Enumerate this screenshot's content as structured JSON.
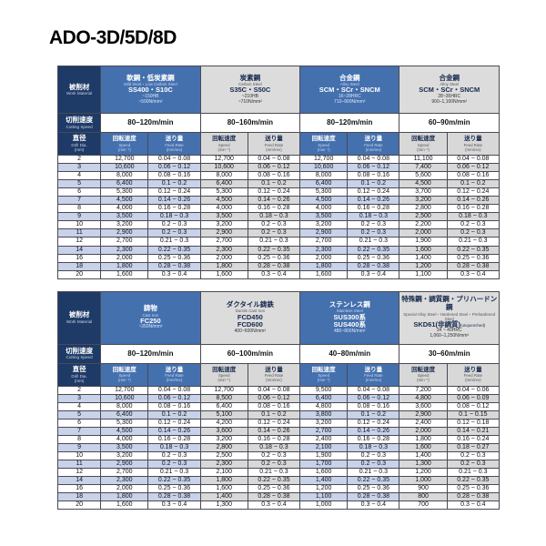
{
  "page": {
    "title": "ADO-3D/5D/8D"
  },
  "labels": {
    "work_material": "被削材",
    "work_material_sub": "Work Material",
    "cutting_speed": "切削速度",
    "cutting_speed_sub": "Cutting Speed",
    "dia": "直径",
    "dia_sub": "Drill Dia.",
    "dia_unit": "(mm)",
    "speed": "回転速度",
    "speed_sub": "Speed",
    "speed_unit": "(min⁻¹)",
    "feed": "送り量",
    "feed_sub": "Feed Rate",
    "feed_unit": "(mm/rev)"
  },
  "tables": [
    {
      "materials": [
        {
          "style": "blue",
          "name_jp": "軟鋼・低炭素鋼",
          "name_en": "Mild Steel・Low Carbon Steel",
          "grade": "SS400・S10C",
          "hardness": "~150HB",
          "strength": "~500N/mm²",
          "cutting_speed": "80–120m/min"
        },
        {
          "style": "gray",
          "name_jp": "炭素鋼",
          "name_en": "Carbon Steel",
          "grade": "S35C・S50C",
          "hardness": "~210HB",
          "strength": "~710N/mm²",
          "cutting_speed": "80–160m/min"
        },
        {
          "style": "blue",
          "name_jp": "合金鋼",
          "name_en": "Alloy Steel",
          "grade": "SCM・SCr・SNCM",
          "hardness": "16~28HRC",
          "strength": "710–900N/mm²",
          "cutting_speed": "80–120m/min"
        },
        {
          "style": "gray",
          "name_jp": "合金鋼",
          "name_en": "Alloy Steel",
          "grade": "SCM・SCr・SNCM",
          "hardness": "28~35HRC",
          "strength": "900–1,100N/mm²",
          "cutting_speed": "60–90m/min"
        }
      ],
      "rows": [
        {
          "dia": "2",
          "cells": [
            [
              "12,700",
              "0.04 ~ 0.08"
            ],
            [
              "12,700",
              "0.04 ~ 0.08"
            ],
            [
              "12,700",
              "0.04 ~ 0.08"
            ],
            [
              "11,100",
              "0.04 ~ 0.08"
            ]
          ]
        },
        {
          "dia": "3",
          "cells": [
            [
              "10,600",
              "0.06 ~ 0.12"
            ],
            [
              "10,600",
              "0.06 ~ 0.12"
            ],
            [
              "10,600",
              "0.06 ~ 0.12"
            ],
            [
              "7,400",
              "0.06 ~ 0.12"
            ]
          ]
        },
        {
          "dia": "4",
          "cells": [
            [
              "8,000",
              "0.08 ~ 0.16"
            ],
            [
              "8,000",
              "0.08 ~ 0.16"
            ],
            [
              "8,000",
              "0.08 ~ 0.16"
            ],
            [
              "5,600",
              "0.08 ~ 0.16"
            ]
          ]
        },
        {
          "dia": "5",
          "cells": [
            [
              "6,400",
              "0.1 ~ 0.2"
            ],
            [
              "6,400",
              "0.1 ~ 0.2"
            ],
            [
              "6,400",
              "0.1 ~ 0.2"
            ],
            [
              "4,500",
              "0.1 ~ 0.2"
            ]
          ]
        },
        {
          "dia": "6",
          "cells": [
            [
              "5,300",
              "0.12 ~ 0.24"
            ],
            [
              "5,300",
              "0.12 ~ 0.24"
            ],
            [
              "5,300",
              "0.12 ~ 0.24"
            ],
            [
              "3,700",
              "0.12 ~ 0.24"
            ]
          ]
        },
        {
          "dia": "7",
          "cells": [
            [
              "4,500",
              "0.14 ~ 0.26"
            ],
            [
              "4,500",
              "0.14 ~ 0.26"
            ],
            [
              "4,500",
              "0.14 ~ 0.26"
            ],
            [
              "3,200",
              "0.14 ~ 0.26"
            ]
          ]
        },
        {
          "dia": "8",
          "cells": [
            [
              "4,000",
              "0.16 ~ 0.28"
            ],
            [
              "4,000",
              "0.16 ~ 0.28"
            ],
            [
              "4,000",
              "0.16 ~ 0.28"
            ],
            [
              "2,800",
              "0.16 ~ 0.28"
            ]
          ]
        },
        {
          "dia": "9",
          "cells": [
            [
              "3,500",
              "0.18 ~ 0.3"
            ],
            [
              "3,500",
              "0.18 ~ 0.3"
            ],
            [
              "3,500",
              "0.18 ~ 0.3"
            ],
            [
              "2,500",
              "0.18 ~ 0.3"
            ]
          ]
        },
        {
          "dia": "10",
          "cells": [
            [
              "3,200",
              "0.2 ~ 0.3"
            ],
            [
              "3,200",
              "0.2 ~ 0.3"
            ],
            [
              "3,200",
              "0.2 ~ 0.3"
            ],
            [
              "2,200",
              "0.2 ~ 0.3"
            ]
          ]
        },
        {
          "dia": "11",
          "cells": [
            [
              "2,900",
              "0.2 ~ 0.3"
            ],
            [
              "2,900",
              "0.2 ~ 0.3"
            ],
            [
              "2,900",
              "0.2 ~ 0.3"
            ],
            [
              "2,000",
              "0.2 ~ 0.3"
            ]
          ]
        },
        {
          "dia": "12",
          "cells": [
            [
              "2,700",
              "0.21 ~ 0.3"
            ],
            [
              "2,700",
              "0.21 ~ 0.3"
            ],
            [
              "2,700",
              "0.21 ~ 0.3"
            ],
            [
              "1,900",
              "0.21 ~ 0.3"
            ]
          ]
        },
        {
          "dia": "14",
          "cells": [
            [
              "2,300",
              "0.22 ~ 0.35"
            ],
            [
              "2,300",
              "0.22 ~ 0.35"
            ],
            [
              "2,300",
              "0.22 ~ 0.35"
            ],
            [
              "1,600",
              "0.22 ~ 0.35"
            ]
          ]
        },
        {
          "dia": "16",
          "cells": [
            [
              "2,000",
              "0.25 ~ 0.36"
            ],
            [
              "2,000",
              "0.25 ~ 0.36"
            ],
            [
              "2,000",
              "0.25 ~ 0.36"
            ],
            [
              "1,400",
              "0.25 ~ 0.36"
            ]
          ]
        },
        {
          "dia": "18",
          "cells": [
            [
              "1,800",
              "0.28 ~ 0.38"
            ],
            [
              "1,800",
              "0.28 ~ 0.38"
            ],
            [
              "1,800",
              "0.28 ~ 0.38"
            ],
            [
              "1,200",
              "0.28 ~ 0.38"
            ]
          ]
        },
        {
          "dia": "20",
          "cells": [
            [
              "1,600",
              "0.3 ~ 0.4"
            ],
            [
              "1,600",
              "0.3 ~ 0.4"
            ],
            [
              "1,600",
              "0.3 ~ 0.4"
            ],
            [
              "1,100",
              "0.3 ~ 0.4"
            ]
          ]
        }
      ]
    },
    {
      "materials": [
        {
          "style": "blue",
          "name_jp": "鋳物",
          "name_en": "Cast Iron",
          "grade": "FC250",
          "strength": "~350N/mm²",
          "cutting_speed": "80–120m/min"
        },
        {
          "style": "gray",
          "name_jp": "ダクタイル鋳鉄",
          "name_en": "Ductile Cast Iron",
          "grade": "FCD450\nFCD600",
          "strength": "400~600N/mm²",
          "cutting_speed": "60–100m/min"
        },
        {
          "style": "blue",
          "name_jp": "ステンレス鋼",
          "name_en": "Stainless Steel",
          "grade": "SUS300系\nSUS400系",
          "strength": "480~800N/mm²",
          "cutting_speed": "40–80m/min"
        },
        {
          "style": "gray",
          "name_jp": "特殊鋼・調質鋼・プリハードン鋼",
          "name_en": "Special Alloy Steel・Hardened Steel・Prehardened Steel",
          "grade": "SKD61(非調質)",
          "grade_note": "(unquenched)",
          "hardness": "34 ~ 40HRC",
          "strength": "1,060–1,250N/mm²",
          "cutting_speed": "30–60m/min"
        }
      ],
      "rows": [
        {
          "dia": "2",
          "cells": [
            [
              "12,700",
              "0.04 ~ 0.08"
            ],
            [
              "12,700",
              "0.04 ~ 0.08"
            ],
            [
              "9,500",
              "0.04 ~ 0.08"
            ],
            [
              "7,200",
              "0.04 ~ 0.06"
            ]
          ]
        },
        {
          "dia": "3",
          "cells": [
            [
              "10,600",
              "0.06 ~ 0.12"
            ],
            [
              "8,500",
              "0.06 ~ 0.12"
            ],
            [
              "6,400",
              "0.06 ~ 0.12"
            ],
            [
              "4,800",
              "0.06 ~ 0.09"
            ]
          ]
        },
        {
          "dia": "4",
          "cells": [
            [
              "8,000",
              "0.08 ~ 0.16"
            ],
            [
              "6,400",
              "0.08 ~ 0.16"
            ],
            [
              "4,800",
              "0.08 ~ 0.16"
            ],
            [
              "3,600",
              "0.08 ~ 0.12"
            ]
          ]
        },
        {
          "dia": "5",
          "cells": [
            [
              "6,400",
              "0.1 ~ 0.2"
            ],
            [
              "5,100",
              "0.1 ~ 0.2"
            ],
            [
              "3,800",
              "0.1 ~ 0.2"
            ],
            [
              "2,900",
              "0.1 ~ 0.15"
            ]
          ]
        },
        {
          "dia": "6",
          "cells": [
            [
              "5,300",
              "0.12 ~ 0.24"
            ],
            [
              "4,200",
              "0.12 ~ 0.24"
            ],
            [
              "3,200",
              "0.12 ~ 0.24"
            ],
            [
              "2,400",
              "0.12 ~ 0.18"
            ]
          ]
        },
        {
          "dia": "7",
          "cells": [
            [
              "4,500",
              "0.14 ~ 0.26"
            ],
            [
              "3,600",
              "0.14 ~ 0.26"
            ],
            [
              "2,700",
              "0.14 ~ 0.26"
            ],
            [
              "2,000",
              "0.14 ~ 0.21"
            ]
          ]
        },
        {
          "dia": "8",
          "cells": [
            [
              "4,000",
              "0.16 ~ 0.28"
            ],
            [
              "3,200",
              "0.16 ~ 0.28"
            ],
            [
              "2,400",
              "0.16 ~ 0.28"
            ],
            [
              "1,800",
              "0.16 ~ 0.24"
            ]
          ]
        },
        {
          "dia": "9",
          "cells": [
            [
              "3,500",
              "0.18 ~ 0.3"
            ],
            [
              "2,800",
              "0.18 ~ 0.3"
            ],
            [
              "2,100",
              "0.18 ~ 0.3"
            ],
            [
              "1,600",
              "0.18 ~ 0.27"
            ]
          ]
        },
        {
          "dia": "10",
          "cells": [
            [
              "3,200",
              "0.2 ~ 0.3"
            ],
            [
              "2,500",
              "0.2 ~ 0.3"
            ],
            [
              "1,900",
              "0.2 ~ 0.3"
            ],
            [
              "1,400",
              "0.2 ~ 0.3"
            ]
          ]
        },
        {
          "dia": "11",
          "cells": [
            [
              "2,900",
              "0.2 ~ 0.3"
            ],
            [
              "2,300",
              "0.2 ~ 0.3"
            ],
            [
              "1,700",
              "0.2 ~ 0.3"
            ],
            [
              "1,300",
              "0.2 ~ 0.3"
            ]
          ]
        },
        {
          "dia": "12",
          "cells": [
            [
              "2,700",
              "0.21 ~ 0.3"
            ],
            [
              "2,100",
              "0.21 ~ 0.3"
            ],
            [
              "1,600",
              "0.21 ~ 0.3"
            ],
            [
              "1,200",
              "0.21 ~ 0.3"
            ]
          ]
        },
        {
          "dia": "14",
          "cells": [
            [
              "2,300",
              "0.22 ~ 0.35"
            ],
            [
              "1,800",
              "0.22 ~ 0.35"
            ],
            [
              "1,400",
              "0.22 ~ 0.35"
            ],
            [
              "1,000",
              "0.22 ~ 0.35"
            ]
          ]
        },
        {
          "dia": "16",
          "cells": [
            [
              "2,000",
              "0.25 ~ 0.36"
            ],
            [
              "1,600",
              "0.25 ~ 0.36"
            ],
            [
              "1,200",
              "0.25 ~ 0.36"
            ],
            [
              "900",
              "0.25 ~ 0.36"
            ]
          ]
        },
        {
          "dia": "18",
          "cells": [
            [
              "1,800",
              "0.28 ~ 0.38"
            ],
            [
              "1,400",
              "0.28 ~ 0.38"
            ],
            [
              "1,100",
              "0.28 ~ 0.38"
            ],
            [
              "800",
              "0.28 ~ 0.38"
            ]
          ]
        },
        {
          "dia": "20",
          "cells": [
            [
              "1,600",
              "0.3 ~ 0.4"
            ],
            [
              "1,300",
              "0.3 ~ 0.4"
            ],
            [
              "1,000",
              "0.3 ~ 0.4"
            ],
            [
              "700",
              "0.3 ~ 0.4"
            ]
          ]
        }
      ]
    }
  ]
}
